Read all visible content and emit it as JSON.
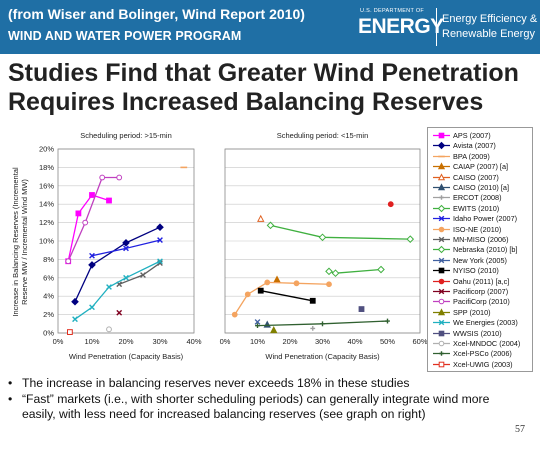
{
  "header": {
    "source": "(from Wiser and Bolinger, Wind Report 2010)",
    "program": "WIND AND WATER POWER PROGRAM",
    "logo_small": "U.S. DEPARTMENT OF",
    "logo_big": "ENERGY",
    "logo_right1": "Energy Efficiency &",
    "logo_right2": "Renewable Energy"
  },
  "title_line1": "Studies Find that Greater Wind Penetration",
  "title_line2": "Requires Increased Balancing Reserves",
  "bullets": [
    "The increase in balancing reserves never exceeds 18% in these studies",
    "“Fast” markets (i.e., with shorter scheduling periods) can generally integrate wind more easily, with less need for increased balancing reserves (see graph on right)"
  ],
  "page_number": "57",
  "chart_data": {
    "type": "line",
    "ylabel": "Increase in Balancing Reserves (Incremental Reserve MW / Incremental Wind MW)",
    "ylim": [
      0,
      20
    ],
    "ytick_labels": [
      "0%",
      "2%",
      "4%",
      "6%",
      "8%",
      "10%",
      "12%",
      "14%",
      "16%",
      "18%",
      "20%"
    ],
    "grid": true,
    "legend_position": "right",
    "panels": [
      {
        "title": "Scheduling period: >15-min",
        "xlabel": "Wind Penetration (Capacity Basis)",
        "xlim": [
          0,
          40
        ],
        "xtick_labels": [
          "0%",
          "10%",
          "20%",
          "30%",
          "40%"
        ]
      },
      {
        "title": "Scheduling period: <15-min",
        "xlabel": "Wind Penetration (Capacity Basis)",
        "xlim": [
          0,
          60
        ],
        "xtick_labels": [
          "0%",
          "10%",
          "20%",
          "30%",
          "40%",
          "50%",
          "60%"
        ]
      }
    ],
    "series": [
      {
        "name": "APS (2007)",
        "color": "#ff00ff",
        "marker": "square",
        "panel": 0,
        "points": [
          [
            3,
            7.8
          ],
          [
            6,
            13
          ],
          [
            10,
            15
          ],
          [
            15,
            14.4
          ]
        ]
      },
      {
        "name": "Avista (2007)",
        "color": "#000080",
        "marker": "diamond",
        "panel": 0,
        "points": [
          [
            5,
            3.4
          ],
          [
            10,
            7.4
          ],
          [
            20,
            9.8
          ],
          [
            30,
            11.5
          ]
        ]
      },
      {
        "name": "BPA (2009)",
        "color": "#f4a460",
        "marker": "dash",
        "panel": 0,
        "points": [
          [
            37,
            18
          ]
        ]
      },
      {
        "name": "CAIAP (2007) [a]",
        "color": "#c87000",
        "marker": "triangle",
        "panel": 1,
        "points": [
          [
            16,
            5.8
          ]
        ]
      },
      {
        "name": "CAISO (2007)",
        "color": "#e06020",
        "marker": "triangle-open",
        "panel": 1,
        "points": [
          [
            11,
            12.4
          ]
        ]
      },
      {
        "name": "CAISO (2010) [a]",
        "color": "#305070",
        "marker": "triangle",
        "panel": 1,
        "points": [
          [
            13,
            0.9
          ]
        ]
      },
      {
        "name": "ERCOT (2008)",
        "color": "#a0a0a0",
        "marker": "plus",
        "panel": 1,
        "points": [
          [
            27,
            0.5
          ]
        ]
      },
      {
        "name": "EWITS (2010)",
        "color": "#40b040",
        "marker": "diamond-open",
        "panel": 1,
        "points": [
          [
            14,
            11.7
          ],
          [
            30,
            10.4
          ],
          [
            57,
            10.2
          ]
        ]
      },
      {
        "name": "Idaho Power (2007)",
        "color": "#2020e0",
        "marker": "x",
        "panel": 0,
        "points": [
          [
            10,
            8.4
          ],
          [
            20,
            9.2
          ],
          [
            30,
            10.1
          ]
        ]
      },
      {
        "name": "ISO-NE (2010)",
        "color": "#f4a460",
        "marker": "circle",
        "panel": 1,
        "points": [
          [
            3,
            2
          ],
          [
            7,
            4.2
          ],
          [
            13,
            5.5
          ],
          [
            22,
            5.4
          ],
          [
            32,
            5.3
          ]
        ]
      },
      {
        "name": "MN-MISO (2006)",
        "color": "#606060",
        "marker": "x",
        "panel": 0,
        "points": [
          [
            18,
            5.3
          ],
          [
            25,
            6.3
          ],
          [
            30,
            7.6
          ]
        ]
      },
      {
        "name": "Nebraska (2010) [b]",
        "color": "#40b040",
        "marker": "diamond-open",
        "panel": 1,
        "points": [
          [
            32,
            6.7
          ],
          [
            34,
            6.5
          ],
          [
            48,
            6.9
          ]
        ]
      },
      {
        "name": "New York (2005)",
        "color": "#4060a0",
        "marker": "x",
        "panel": 1,
        "points": [
          [
            10,
            1.2
          ]
        ]
      },
      {
        "name": "NYISO (2010)",
        "color": "#000000",
        "marker": "square",
        "panel": 1,
        "points": [
          [
            11,
            4.6
          ],
          [
            27,
            3.5
          ]
        ]
      },
      {
        "name": "Oahu (2011) [a,c]",
        "color": "#e02020",
        "marker": "circle",
        "panel": 1,
        "points": [
          [
            51,
            14
          ]
        ]
      },
      {
        "name": "Pacificorp (2007)",
        "color": "#800020",
        "marker": "x",
        "panel": 0,
        "points": [
          [
            18,
            2.2
          ]
        ]
      },
      {
        "name": "PacifiCorp (2010)",
        "color": "#c040c0",
        "marker": "circle-open",
        "panel": 0,
        "points": [
          [
            3,
            7.8
          ],
          [
            8,
            12
          ],
          [
            13,
            16.9
          ],
          [
            18,
            16.9
          ]
        ]
      },
      {
        "name": "SPP (2010)",
        "color": "#808000",
        "marker": "triangle",
        "panel": 1,
        "points": [
          [
            15,
            0.3
          ]
        ]
      },
      {
        "name": "We Energies (2003)",
        "color": "#20b0c0",
        "marker": "x",
        "panel": 0,
        "points": [
          [
            5,
            1.5
          ],
          [
            10,
            2.8
          ],
          [
            15,
            5
          ],
          [
            20,
            6
          ],
          [
            30,
            7.8
          ]
        ]
      },
      {
        "name": "WWSIS (2010)",
        "color": "#505080",
        "marker": "square",
        "panel": 1,
        "points": [
          [
            42,
            2.6
          ]
        ]
      },
      {
        "name": "Xcel-MNDOC (2004)",
        "color": "#b0b0b0",
        "marker": "circle-open",
        "panel": 0,
        "points": [
          [
            15,
            0.4
          ]
        ]
      },
      {
        "name": "Xcel-PSCo (2006)",
        "color": "#306030",
        "marker": "plus",
        "panel": 1,
        "points": [
          [
            10,
            0.8
          ],
          [
            30,
            1
          ],
          [
            50,
            1.3
          ]
        ]
      },
      {
        "name": "Xcel-UWIG (2003)",
        "color": "#e03020",
        "marker": "square-open",
        "panel": 0,
        "points": [
          [
            3.5,
            0.1
          ]
        ]
      }
    ]
  }
}
